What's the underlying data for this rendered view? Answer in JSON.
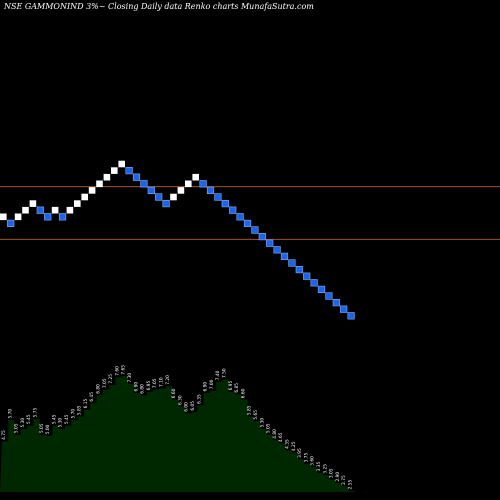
{
  "title": "NSE GAMMONIND 3%~  Closing Daily data  Renko  charts MunafaSutra.com",
  "colors": {
    "background": "#000000",
    "up_brick": "#ffffff",
    "down_brick": "#1e64e6",
    "down_brick_border": "#7eb0ff",
    "reference_line": "#a0522d",
    "volume_fill": "#002800",
    "volume_label": "#ffffff"
  },
  "chart_data": {
    "type": "renko",
    "brick_size_pct": 3,
    "bricks": [
      {
        "dir": "up",
        "level": 8
      },
      {
        "dir": "down",
        "level": 7
      },
      {
        "dir": "up",
        "level": 8
      },
      {
        "dir": "up",
        "level": 9
      },
      {
        "dir": "up",
        "level": 10
      },
      {
        "dir": "down",
        "level": 9
      },
      {
        "dir": "down",
        "level": 8
      },
      {
        "dir": "up",
        "level": 9
      },
      {
        "dir": "down",
        "level": 8
      },
      {
        "dir": "up",
        "level": 9
      },
      {
        "dir": "up",
        "level": 10
      },
      {
        "dir": "up",
        "level": 11
      },
      {
        "dir": "up",
        "level": 12
      },
      {
        "dir": "up",
        "level": 13
      },
      {
        "dir": "up",
        "level": 14
      },
      {
        "dir": "up",
        "level": 15
      },
      {
        "dir": "up",
        "level": 16
      },
      {
        "dir": "down",
        "level": 15
      },
      {
        "dir": "down",
        "level": 14
      },
      {
        "dir": "down",
        "level": 13
      },
      {
        "dir": "down",
        "level": 12
      },
      {
        "dir": "down",
        "level": 11
      },
      {
        "dir": "down",
        "level": 10
      },
      {
        "dir": "up",
        "level": 11
      },
      {
        "dir": "up",
        "level": 12
      },
      {
        "dir": "up",
        "level": 13
      },
      {
        "dir": "up",
        "level": 14
      },
      {
        "dir": "down",
        "level": 13
      },
      {
        "dir": "down",
        "level": 12
      },
      {
        "dir": "down",
        "level": 11
      },
      {
        "dir": "down",
        "level": 10
      },
      {
        "dir": "down",
        "level": 9
      },
      {
        "dir": "down",
        "level": 8
      },
      {
        "dir": "down",
        "level": 7
      },
      {
        "dir": "down",
        "level": 6
      },
      {
        "dir": "down",
        "level": 5
      },
      {
        "dir": "down",
        "level": 4
      },
      {
        "dir": "down",
        "level": 3
      },
      {
        "dir": "down",
        "level": 2
      },
      {
        "dir": "down",
        "level": 1
      },
      {
        "dir": "down",
        "level": 0
      },
      {
        "dir": "down",
        "level": -1
      },
      {
        "dir": "down",
        "level": -2
      },
      {
        "dir": "down",
        "level": -3
      },
      {
        "dir": "down",
        "level": -4
      },
      {
        "dir": "down",
        "level": -5
      },
      {
        "dir": "down",
        "level": -6
      },
      {
        "dir": "down",
        "level": -7
      }
    ],
    "reference_levels": [
      {
        "name": "upper",
        "level": 12.5
      },
      {
        "name": "lower",
        "level": 4.5
      }
    ],
    "price_labels": [
      "4.75",
      "5.70",
      "5.05",
      "5.30",
      "5.45",
      "5.75",
      "5.05",
      "5.00",
      "5.45",
      "5.30",
      "5.45",
      "5.70",
      "5.85",
      "6.15",
      "6.45",
      "6.80",
      "7.05",
      "7.25",
      "7.60",
      "7.65",
      "7.30",
      "6.90",
      "6.80",
      "6.95",
      "7.05",
      "7.10",
      "7.20",
      "6.60",
      "6.30",
      "6.00",
      "6.05",
      "6.35",
      "6.90",
      "7.00",
      "7.40",
      "7.50",
      "6.95",
      "6.85",
      "6.60",
      "5.85",
      "5.65",
      "5.30",
      "5.05",
      "4.80",
      "4.65",
      "4.35",
      "4.25",
      "3.95",
      "3.75",
      "3.60",
      "3.35",
      "3.25",
      "3.05",
      "2.90",
      "2.75",
      "2.55"
    ]
  }
}
